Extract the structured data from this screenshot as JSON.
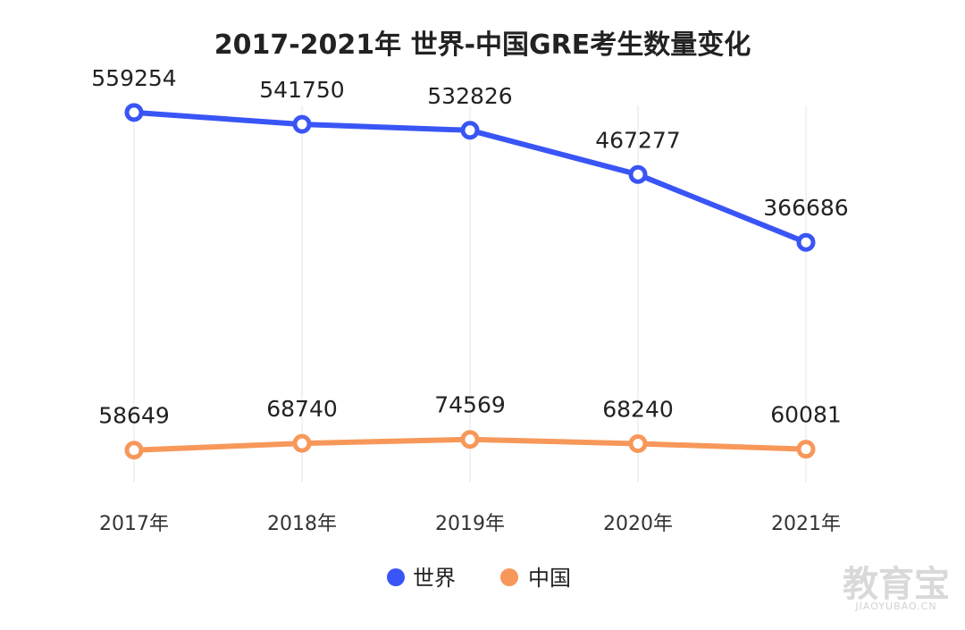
{
  "chart_data": {
    "type": "line",
    "title": "2017-2021年 世界-中国GRE考生数量变化",
    "categories": [
      "2017年",
      "2018年",
      "2019年",
      "2020年",
      "2021年"
    ],
    "series": [
      {
        "name": "世界",
        "color": "#3a55f5",
        "values": [
          559254,
          541750,
          532826,
          467277,
          366686
        ]
      },
      {
        "name": "中国",
        "color": "#f7985a",
        "values": [
          58649,
          68740,
          74569,
          68240,
          60081
        ]
      }
    ],
    "xlabel": "",
    "ylabel": "",
    "grid": "vertical",
    "legend": "bottom",
    "ylim": [
      0,
      620000
    ]
  },
  "watermark": {
    "text": "教育宝",
    "sub": "JIAOYUBAO.CN"
  }
}
